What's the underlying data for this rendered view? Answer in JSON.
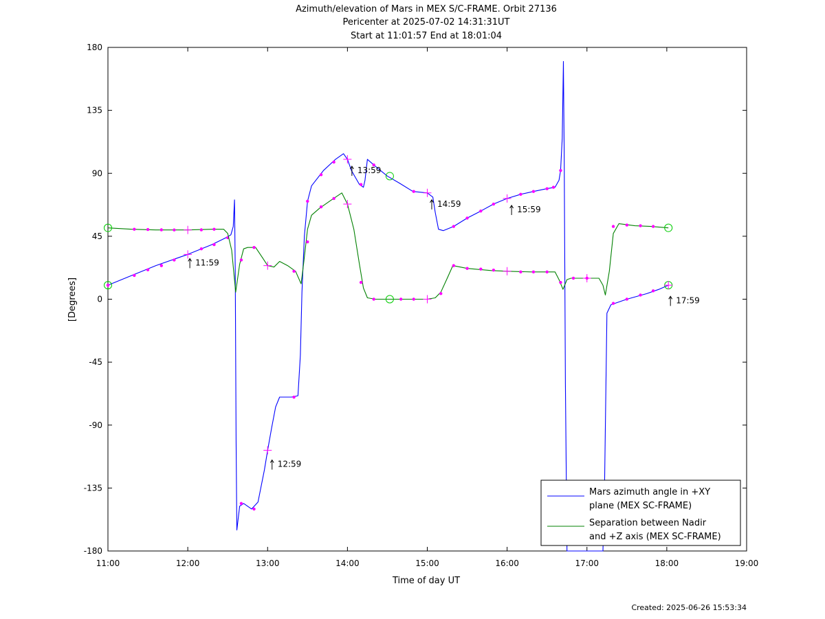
{
  "chart_data": {
    "type": "line",
    "title_lines": [
      "Azimuth/elevation of Mars in MEX S/C-FRAME.  Orbit 27136",
      "Pericenter at 2025-07-02 14:31:31UT",
      "Start at 11:01:57 End at 18:01:04"
    ],
    "xlabel": "Time of day UT",
    "ylabel": "[Degrees]",
    "xlim": [
      11,
      19
    ],
    "ylim": [
      -180,
      180
    ],
    "x_tick_values": [
      11,
      12,
      13,
      14,
      15,
      16,
      17,
      18,
      19
    ],
    "x_tick_labels": [
      "11:00",
      "12:00",
      "13:00",
      "14:00",
      "15:00",
      "16:00",
      "17:00",
      "18:00",
      "19:00"
    ],
    "y_tick_values": [
      180,
      135,
      90,
      45,
      0,
      -45,
      -90,
      -135,
      -180
    ],
    "y_tick_labels": [
      "180",
      "135",
      "90",
      "45",
      "0",
      "-45",
      "-90",
      "-135",
      "-180"
    ],
    "grid": false,
    "legend_position": "bottom-right",
    "marker_color": "#ff00ff",
    "circle_color": "#00cc00",
    "series": [
      {
        "name": "Mars azimuth angle in +XY plane (MEX SC-FRAME)",
        "legend_lines": [
          "Mars azimuth angle in +XY",
          "plane (MEX SC-FRAME)"
        ],
        "color": "#0000ff",
        "points": [
          [
            11.0,
            10
          ],
          [
            11.3,
            17
          ],
          [
            11.6,
            24
          ],
          [
            12.0,
            32
          ],
          [
            12.3,
            39
          ],
          [
            12.48,
            44
          ],
          [
            12.54,
            46
          ],
          [
            12.57,
            52
          ],
          [
            12.585,
            71
          ],
          [
            12.595,
            20
          ],
          [
            12.605,
            -100
          ],
          [
            12.615,
            -165
          ],
          [
            12.65,
            -148
          ],
          [
            12.7,
            -146
          ],
          [
            12.8,
            -150
          ],
          [
            12.88,
            -145
          ],
          [
            12.96,
            -122
          ],
          [
            13.0,
            -108
          ],
          [
            13.05,
            -92
          ],
          [
            13.1,
            -77
          ],
          [
            13.15,
            -70
          ],
          [
            13.3,
            -70
          ],
          [
            13.38,
            -69
          ],
          [
            13.41,
            -40
          ],
          [
            13.43,
            5
          ],
          [
            13.46,
            45
          ],
          [
            13.5,
            70
          ],
          [
            13.55,
            81
          ],
          [
            13.7,
            92
          ],
          [
            13.85,
            100
          ],
          [
            13.95,
            104
          ],
          [
            14.0,
            100
          ],
          [
            14.05,
            92
          ],
          [
            14.1,
            87
          ],
          [
            14.15,
            82
          ],
          [
            14.2,
            80
          ],
          [
            14.22,
            85
          ],
          [
            14.25,
            100
          ],
          [
            14.35,
            95
          ],
          [
            14.5,
            88
          ],
          [
            14.65,
            83
          ],
          [
            14.82,
            77
          ],
          [
            15.0,
            76
          ],
          [
            15.07,
            73
          ],
          [
            15.1,
            62
          ],
          [
            15.14,
            50
          ],
          [
            15.2,
            49
          ],
          [
            15.33,
            52
          ],
          [
            15.5,
            58
          ],
          [
            15.67,
            63
          ],
          [
            15.83,
            68
          ],
          [
            16.0,
            72
          ],
          [
            16.17,
            75
          ],
          [
            16.33,
            77
          ],
          [
            16.5,
            79
          ],
          [
            16.6,
            80
          ],
          [
            16.65,
            85
          ],
          [
            16.67,
            92
          ],
          [
            16.69,
            115
          ],
          [
            16.705,
            170
          ],
          [
            16.715,
            100
          ],
          [
            16.73,
            -60
          ],
          [
            16.75,
            -180
          ],
          [
            16.9,
            -180
          ],
          [
            17.2,
            -180
          ],
          [
            17.22,
            -135
          ],
          [
            17.25,
            -10
          ],
          [
            17.3,
            -4
          ],
          [
            17.5,
            0
          ],
          [
            17.75,
            4
          ],
          [
            17.9,
            7
          ],
          [
            18.02,
            10
          ]
        ],
        "markers": [
          [
            11.0,
            10
          ],
          [
            11.33,
            17
          ],
          [
            11.5,
            21
          ],
          [
            11.67,
            24
          ],
          [
            11.83,
            28
          ],
          [
            12.17,
            36
          ],
          [
            12.33,
            39
          ],
          [
            12.5,
            44
          ],
          [
            12.67,
            -146
          ],
          [
            12.83,
            -150
          ],
          [
            13.33,
            -70
          ],
          [
            13.5,
            70
          ],
          [
            13.67,
            89
          ],
          [
            13.83,
            98
          ],
          [
            14.17,
            82
          ],
          [
            14.33,
            96
          ],
          [
            14.83,
            77
          ],
          [
            15.33,
            52
          ],
          [
            15.5,
            58
          ],
          [
            15.67,
            63
          ],
          [
            15.83,
            68
          ],
          [
            16.17,
            75
          ],
          [
            16.33,
            77
          ],
          [
            16.5,
            79
          ],
          [
            16.58,
            80
          ],
          [
            16.67,
            92
          ],
          [
            17.33,
            -3
          ],
          [
            17.5,
            0
          ],
          [
            17.67,
            3
          ],
          [
            17.83,
            6
          ]
        ],
        "crosses": [
          [
            12.0,
            32
          ],
          [
            13.0,
            -108
          ],
          [
            14.0,
            100
          ],
          [
            15.0,
            76
          ],
          [
            16.0,
            72
          ],
          [
            18.02,
            10
          ]
        ],
        "circles": [
          [
            11.0,
            10
          ],
          [
            14.53,
            88
          ],
          [
            18.02,
            10
          ]
        ]
      },
      {
        "name": "Separation between Nadir and +Z axis (MEX SC-FRAME)",
        "legend_lines": [
          "Separation between Nadir",
          "and +Z axis (MEX SC-FRAME)"
        ],
        "color": "#008000",
        "points": [
          [
            11.0,
            51
          ],
          [
            11.3,
            50
          ],
          [
            11.6,
            49.5
          ],
          [
            12.0,
            49.5
          ],
          [
            12.3,
            50
          ],
          [
            12.45,
            50
          ],
          [
            12.5,
            47
          ],
          [
            12.55,
            35
          ],
          [
            12.6,
            5
          ],
          [
            12.65,
            25
          ],
          [
            12.7,
            36
          ],
          [
            12.75,
            37
          ],
          [
            12.85,
            37
          ],
          [
            12.92,
            31
          ],
          [
            13.0,
            24
          ],
          [
            13.08,
            23
          ],
          [
            13.15,
            27
          ],
          [
            13.25,
            24
          ],
          [
            13.35,
            20
          ],
          [
            13.42,
            11
          ],
          [
            13.45,
            25
          ],
          [
            13.5,
            50
          ],
          [
            13.55,
            60
          ],
          [
            13.65,
            65
          ],
          [
            13.8,
            71
          ],
          [
            13.93,
            76
          ],
          [
            14.0,
            68
          ],
          [
            14.08,
            50
          ],
          [
            14.15,
            25
          ],
          [
            14.2,
            8
          ],
          [
            14.25,
            1
          ],
          [
            14.35,
            0
          ],
          [
            14.6,
            0
          ],
          [
            15.0,
            0
          ],
          [
            15.1,
            1
          ],
          [
            15.17,
            5
          ],
          [
            15.25,
            15
          ],
          [
            15.32,
            24
          ],
          [
            15.5,
            22
          ],
          [
            15.8,
            20.5
          ],
          [
            16.0,
            20
          ],
          [
            16.3,
            19.5
          ],
          [
            16.6,
            19.5
          ],
          [
            16.65,
            14
          ],
          [
            16.7,
            7
          ],
          [
            16.75,
            14
          ],
          [
            16.8,
            15
          ],
          [
            17.0,
            15
          ],
          [
            17.15,
            15
          ],
          [
            17.2,
            10
          ],
          [
            17.23,
            3
          ],
          [
            17.28,
            20
          ],
          [
            17.33,
            47
          ],
          [
            17.4,
            54
          ],
          [
            17.6,
            52.5
          ],
          [
            17.8,
            52
          ],
          [
            18.02,
            51
          ]
        ],
        "markers": [
          [
            11.33,
            50
          ],
          [
            11.5,
            49.8
          ],
          [
            11.67,
            49.6
          ],
          [
            11.83,
            49.5
          ],
          [
            12.17,
            49.6
          ],
          [
            12.33,
            50
          ],
          [
            12.67,
            28
          ],
          [
            12.83,
            37
          ],
          [
            13.33,
            20
          ],
          [
            13.5,
            41
          ],
          [
            13.67,
            66
          ],
          [
            13.83,
            72
          ],
          [
            14.17,
            12
          ],
          [
            14.33,
            0
          ],
          [
            14.67,
            0
          ],
          [
            14.83,
            0
          ],
          [
            15.17,
            4
          ],
          [
            15.33,
            24
          ],
          [
            15.5,
            22
          ],
          [
            15.67,
            21.5
          ],
          [
            15.83,
            20.8
          ],
          [
            16.17,
            19.5
          ],
          [
            16.33,
            19.5
          ],
          [
            16.5,
            19.5
          ],
          [
            16.67,
            12
          ],
          [
            16.83,
            15
          ],
          [
            17.0,
            15
          ],
          [
            17.33,
            52
          ],
          [
            17.5,
            53
          ],
          [
            17.67,
            52.5
          ],
          [
            17.83,
            52
          ]
        ],
        "crosses": [
          [
            12.0,
            49.5
          ],
          [
            13.0,
            24
          ],
          [
            14.0,
            68
          ],
          [
            15.0,
            0
          ],
          [
            16.0,
            20
          ],
          [
            17.0,
            15
          ]
        ],
        "circles": [
          [
            11.0,
            51
          ],
          [
            14.53,
            0
          ],
          [
            18.02,
            51
          ]
        ]
      }
    ],
    "annotations": [
      {
        "x": 12.0,
        "y": 32,
        "label": "11:59"
      },
      {
        "x": 13.03,
        "y": -112,
        "label": "12:59"
      },
      {
        "x": 14.03,
        "y": 98,
        "label": "13:59"
      },
      {
        "x": 15.03,
        "y": 74,
        "label": "14:59"
      },
      {
        "x": 16.03,
        "y": 70,
        "label": "15:59"
      },
      {
        "x": 18.02,
        "y": 5,
        "label": "17:59"
      }
    ]
  },
  "footer": {
    "created": "Created: 2025-06-26 15:53:34"
  }
}
